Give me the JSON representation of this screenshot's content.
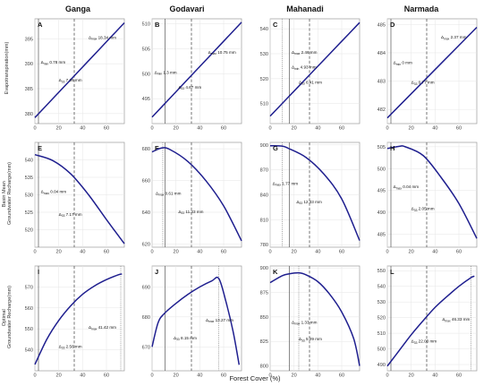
{
  "figure": {
    "column_titles": [
      "Ganga",
      "Godavari",
      "Mahanadi",
      "Narmada"
    ],
    "row_titles": [
      [
        "Evapotranspiration(mm)"
      ],
      [
        "Basin Mean",
        "Groundwater Recharge(mm)"
      ],
      [
        "Optimal",
        "Groundwater Recharge(mm)"
      ]
    ],
    "x_axis_title": "Forest Cover (%)",
    "line_color": "#1f1f8f"
  },
  "chart_data": [
    {
      "panel": "A",
      "row": 0,
      "col": 0,
      "type": "line",
      "xlim": [
        0,
        75
      ],
      "ylim": [
        378,
        399
      ],
      "xticks": [
        0,
        20,
        40,
        60
      ],
      "yticks": [
        380,
        385,
        390,
        395
      ],
      "x": [
        0,
        15,
        30,
        45,
        60,
        75
      ],
      "y": [
        379.2,
        383.0,
        386.8,
        390.6,
        394.4,
        398.2
      ],
      "vlines": {
        "solid": 3,
        "dashed": 33
      },
      "annotations": [
        {
          "sym": "Δ",
          "sub": "max",
          "value": "18.34 mm",
          "x": 45,
          "y": 395.0
        },
        {
          "sym": "Δ",
          "sub": "min",
          "value": "0.78 mm",
          "x": 5,
          "y": 390.0
        },
        {
          "sym": "Δ",
          "sub": "33",
          "value": "7.26 mm",
          "x": 20,
          "y": 386.4
        }
      ]
    },
    {
      "panel": "B",
      "row": 0,
      "col": 1,
      "type": "line",
      "xlim": [
        0,
        75
      ],
      "ylim": [
        490,
        511
      ],
      "xticks": [
        0,
        20,
        40,
        60
      ],
      "yticks": [
        495,
        500,
        505,
        510
      ],
      "x": [
        0,
        15,
        30,
        45,
        60,
        75
      ],
      "y": [
        491.3,
        495.1,
        498.9,
        502.7,
        506.5,
        510.3
      ],
      "vlines": {
        "solid": 11,
        "dashed": 33
      },
      "annotations": [
        {
          "sym": "Δ",
          "sub": "max",
          "value": "10.75 mm",
          "x": 47,
          "y": 504.0
        },
        {
          "sym": "Δ",
          "sub": "min",
          "value": "1.3 mm",
          "x": 2,
          "y": 500.0
        },
        {
          "sym": "Δ",
          "sub": "33",
          "value": "4.67 mm",
          "x": 22,
          "y": 497.0
        }
      ]
    },
    {
      "panel": "C",
      "row": 0,
      "col": 2,
      "type": "line",
      "xlim": [
        0,
        75
      ],
      "ylim": [
        502,
        544
      ],
      "xticks": [
        0,
        20,
        40,
        60
      ],
      "yticks": [
        510,
        520,
        530,
        540
      ],
      "x": [
        0,
        15,
        30,
        45,
        60,
        75
      ],
      "y": [
        505.0,
        512.5,
        520.0,
        527.5,
        535.0,
        542.5
      ],
      "vlines": {
        "dotted": 10,
        "solid": 16,
        "dashed": 33
      },
      "annotations": [
        {
          "sym": "Δ",
          "sub": "max",
          "value": "2.46 mm",
          "x": 18,
          "y": 530.0
        },
        {
          "sym": "Δ",
          "sub": "min",
          "value": "4.93 mm",
          "x": 18,
          "y": 524.0
        },
        {
          "sym": "Δ",
          "sub": "33",
          "value": "6.41 mm",
          "x": 24,
          "y": 518.0
        }
      ]
    },
    {
      "panel": "D",
      "row": 0,
      "col": 3,
      "type": "line",
      "xlim": [
        0,
        75
      ],
      "ylim": [
        481.5,
        485.2
      ],
      "xticks": [
        0,
        20,
        40,
        60
      ],
      "yticks": [
        482,
        483,
        484,
        485
      ],
      "x": [
        0,
        15,
        30,
        45,
        60,
        75
      ],
      "y": [
        481.7,
        482.34,
        482.98,
        483.62,
        484.26,
        484.9
      ],
      "vlines": {
        "solid": 3,
        "dashed": 33
      },
      "annotations": [
        {
          "sym": "Δ",
          "sub": "max",
          "value": "2.37 mm",
          "x": 45,
          "y": 484.5
        },
        {
          "sym": "Δ",
          "sub": "min",
          "value": "0 mm",
          "x": 5,
          "y": 483.6
        },
        {
          "sym": "Δ",
          "sub": "33",
          "value": "0.77 mm",
          "x": 20,
          "y": 482.9
        }
      ]
    },
    {
      "panel": "E",
      "row": 1,
      "col": 0,
      "type": "line",
      "xlim": [
        0,
        75
      ],
      "ylim": [
        515,
        545
      ],
      "xticks": [
        0,
        20,
        40,
        60
      ],
      "yticks": [
        520,
        525,
        530,
        535,
        540
      ],
      "x": [
        0,
        15,
        30,
        45,
        60,
        75
      ],
      "y": [
        541.5,
        539.8,
        536.0,
        530.0,
        522.9,
        516.0
      ],
      "vlines": {
        "solid": 3,
        "dashed": 33
      },
      "annotations": [
        {
          "sym": "Δ",
          "sub": "max",
          "value": "0.04 mm",
          "x": 5,
          "y": 530.5
        },
        {
          "sym": "Δ",
          "sub": "33",
          "value": "7.17 mm",
          "x": 20,
          "y": 524.0
        }
      ]
    },
    {
      "panel": "F",
      "row": 1,
      "col": 1,
      "type": "line",
      "xlim": [
        0,
        75
      ],
      "ylim": [
        618,
        684
      ],
      "xticks": [
        0,
        20,
        40,
        60
      ],
      "yticks": [
        620,
        640,
        660,
        680
      ],
      "x": [
        0,
        8,
        15,
        30,
        45,
        60,
        75
      ],
      "y": [
        678.0,
        680.5,
        679.5,
        672.0,
        660.0,
        644.0,
        622.0
      ],
      "vlines": {
        "dotted": 9,
        "solid": 11,
        "dashed": 33
      },
      "annotations": [
        {
          "sym": "Δ",
          "sub": "max",
          "value": "0.61 mm",
          "x": 3,
          "y": 651.0
        },
        {
          "sym": "Δ",
          "sub": "33",
          "value": "11.33 mm",
          "x": 22,
          "y": 639.5
        }
      ]
    },
    {
      "panel": "G",
      "row": 1,
      "col": 2,
      "type": "line",
      "xlim": [
        0,
        75
      ],
      "ylim": [
        777,
        903
      ],
      "xticks": [
        0,
        20,
        40,
        60
      ],
      "yticks": [
        780,
        810,
        840,
        870,
        900
      ],
      "x": [
        0,
        10,
        15,
        30,
        45,
        60,
        75
      ],
      "y": [
        899.0,
        898.5,
        896.0,
        885.0,
        865.0,
        835.0,
        785.0
      ],
      "vlines": {
        "dotted": 10,
        "solid": 16,
        "dashed": 33
      },
      "annotations": [
        {
          "sym": "Δ",
          "sub": "max",
          "value": "1.77 mm",
          "x": 2,
          "y": 852.0
        },
        {
          "sym": "Δ",
          "sub": "33",
          "value": "12.33 mm",
          "x": 22,
          "y": 830.0
        }
      ]
    },
    {
      "panel": "H",
      "row": 1,
      "col": 3,
      "type": "line",
      "xlim": [
        0,
        75
      ],
      "ylim": [
        482,
        506
      ],
      "xticks": [
        0,
        20,
        40,
        60
      ],
      "yticks": [
        485,
        490,
        495,
        500,
        505
      ],
      "x": [
        0,
        10,
        15,
        30,
        45,
        60,
        75
      ],
      "y": [
        504.6,
        505.1,
        505.0,
        503.0,
        498.0,
        492.0,
        484.0
      ],
      "vlines": {
        "solid": 3,
        "dashed": 33
      },
      "annotations": [
        {
          "sym": "Δ",
          "sub": "max",
          "value": "0.04 mm",
          "x": 5,
          "y": 495.5
        },
        {
          "sym": "Δ",
          "sub": "33",
          "value": "2.05 mm",
          "x": 20,
          "y": 490.5
        }
      ]
    },
    {
      "panel": "I",
      "row": 2,
      "col": 0,
      "type": "line",
      "xlim": [
        0,
        75
      ],
      "ylim": [
        530,
        580
      ],
      "xticks": [
        0,
        20,
        40,
        60
      ],
      "yticks": [
        540,
        550,
        560,
        570
      ],
      "x": [
        0,
        10,
        20,
        30,
        40,
        50,
        60,
        70,
        73
      ],
      "y": [
        533.0,
        545.0,
        554.0,
        561.0,
        566.5,
        570.5,
        573.5,
        575.8,
        576.2
      ],
      "vlines": {
        "solid": 3,
        "dashed": 33,
        "dotted": 72
      },
      "annotations": [
        {
          "sym": "Δ",
          "sub": "max",
          "value": "41.42 mm",
          "x": 45,
          "y": 550.0
        },
        {
          "sym": "Δ",
          "sub": "33",
          "value": "2.56 mm",
          "x": 20,
          "y": 541.0
        }
      ]
    },
    {
      "panel": "J",
      "row": 2,
      "col": 1,
      "type": "line",
      "xlim": [
        0,
        75
      ],
      "ylim": [
        662,
        697
      ],
      "xticks": [
        0,
        20,
        40,
        60
      ],
      "yticks": [
        670,
        680,
        690
      ],
      "x": [
        0,
        5,
        10,
        20,
        30,
        40,
        50,
        56,
        62,
        68,
        73
      ],
      "y": [
        670.0,
        678.0,
        681.0,
        684.5,
        687.5,
        690.0,
        692.0,
        692.8,
        685.0,
        675.0,
        664.0
      ],
      "vlines": {
        "solid": 11,
        "dashed": 33,
        "dotted": 56
      },
      "annotations": [
        {
          "sym": "Δ",
          "sub": "max",
          "value": "13.27 mm",
          "x": 45,
          "y": 678.5
        },
        {
          "sym": "Δ",
          "sub": "33",
          "value": "8.15 mm",
          "x": 18,
          "y": 672.5
        }
      ]
    },
    {
      "panel": "K",
      "row": 2,
      "col": 2,
      "type": "line",
      "xlim": [
        0,
        75
      ],
      "ylim": [
        795,
        902
      ],
      "xticks": [
        0,
        20,
        40,
        60
      ],
      "yticks": [
        800,
        825,
        850,
        875,
        900
      ],
      "x": [
        0,
        10,
        16,
        24,
        30,
        40,
        50,
        60,
        70,
        75
      ],
      "y": [
        885.0,
        892.0,
        894.0,
        895.0,
        893.0,
        886.0,
        873.0,
        855.0,
        828.0,
        800.0
      ],
      "vlines": {
        "solid": 16,
        "dotted": 24,
        "dashed": 33
      },
      "annotations": [
        {
          "sym": "Δ",
          "sub": "max",
          "value": "1.33 mm",
          "x": 18,
          "y": 843.0
        },
        {
          "sym": "Δ",
          "sub": "33",
          "value": "5.29 mm",
          "x": 24,
          "y": 826.0
        }
      ]
    },
    {
      "panel": "L",
      "row": 2,
      "col": 3,
      "type": "line",
      "xlim": [
        0,
        75
      ],
      "ylim": [
        486,
        553
      ],
      "xticks": [
        0,
        20,
        40,
        60
      ],
      "yticks": [
        490,
        500,
        510,
        520,
        530,
        540,
        550
      ],
      "x": [
        0,
        10,
        20,
        30,
        40,
        50,
        60,
        70,
        73
      ],
      "y": [
        489.0,
        499.0,
        509.0,
        518.0,
        526.5,
        533.5,
        540.0,
        545.5,
        546.5
      ],
      "vlines": {
        "solid": 3,
        "dashed": 33,
        "dotted": 70
      },
      "annotations": [
        {
          "sym": "Δ",
          "sub": "max",
          "value": "46.33 mm",
          "x": 46,
          "y": 518.0
        },
        {
          "sym": "Δ",
          "sub": "33",
          "value": "22.03 mm",
          "x": 20,
          "y": 504.0
        }
      ]
    }
  ]
}
